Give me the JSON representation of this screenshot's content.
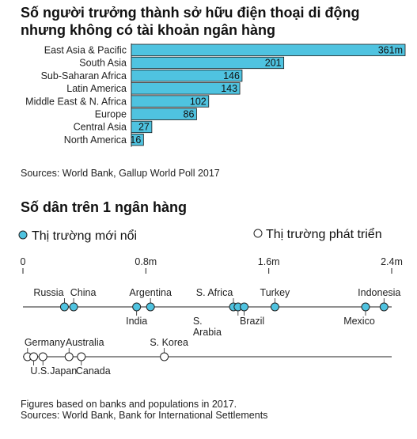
{
  "chart_data": [
    {
      "type": "bar",
      "title_lines": [
        "Số người trưởng thành sở hữu điện thoại di động",
        "nhưng không có tài khoản ngân hàng"
      ],
      "categories": [
        "East Asia & Pacific",
        "South Asia",
        "Sub-Saharan Africa",
        "Latin America",
        "Middle East & N. Africa",
        "Europe",
        "Central Asia",
        "North America"
      ],
      "values": [
        361,
        201,
        146,
        143,
        102,
        86,
        27,
        16
      ],
      "value_labels": [
        "361m",
        "201",
        "146",
        "143",
        "102",
        "86",
        "27",
        "16"
      ],
      "xlim": [
        0,
        361
      ],
      "bar_color": "#4fc3e0",
      "source": "Sources: World Bank, Gallup World Poll 2017"
    },
    {
      "type": "scatter",
      "title": "Số dân trên 1 ngân hàng",
      "legend": [
        {
          "name": "Thị trường mới nổi",
          "marker": "filled",
          "color": "#4fc3e0"
        },
        {
          "name": "Thị trường phát triển",
          "marker": "hollow",
          "color": "#ffffff"
        }
      ],
      "ticks": [
        {
          "value": 0,
          "label": "0"
        },
        {
          "value": 0.8,
          "label": "0.8m"
        },
        {
          "value": 1.6,
          "label": "1.6m"
        },
        {
          "value": 2.4,
          "label": "2.4m"
        }
      ],
      "xlim": [
        0,
        2.4
      ],
      "series": [
        {
          "name": "Thị trường mới nổi",
          "points": [
            {
              "label": "Russia",
              "x": 0.27
            },
            {
              "label": "China",
              "x": 0.33
            },
            {
              "label": "India",
              "x": 0.74
            },
            {
              "label": "Argentina",
              "x": 0.83
            },
            {
              "label": "S. Africa",
              "x": 1.37
            },
            {
              "label": "S. Arabia",
              "x": 1.4
            },
            {
              "label": "Brazil",
              "x": 1.44
            },
            {
              "label": "Turkey",
              "x": 1.64
            },
            {
              "label": "Mexico",
              "x": 2.23
            },
            {
              "label": "Indonesia",
              "x": 2.35
            }
          ]
        },
        {
          "name": "Thị trường phát triển",
          "points": [
            {
              "label": "Germany",
              "x": 0.03
            },
            {
              "label": "U.S.",
              "x": 0.07
            },
            {
              "label": "Japan",
              "x": 0.13
            },
            {
              "label": "Australia",
              "x": 0.3
            },
            {
              "label": "Canada",
              "x": 0.38
            },
            {
              "label": "S. Korea",
              "x": 0.92
            }
          ]
        }
      ],
      "notes": [
        "Figures based on banks and populations in 2017.",
        "Sources: World Bank, Bank for International Settlements"
      ]
    }
  ]
}
